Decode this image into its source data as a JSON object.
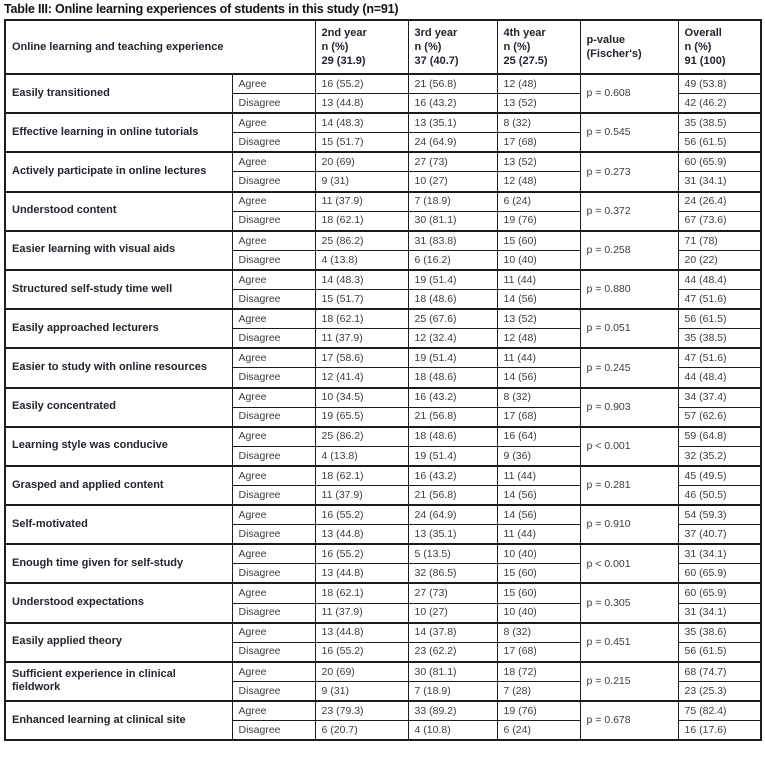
{
  "page": {
    "title": "Table III: Online learning experiences of students in this study (n=91)"
  },
  "colors": {
    "background": "#ffffff",
    "border": "#1b1b1e",
    "heading_text": "#24232e",
    "body_text": "#3c3b42"
  },
  "table": {
    "header": {
      "experience": "Online learning and teaching experience",
      "year2": [
        "2nd year",
        "n (%)",
        "29 (31.9)"
      ],
      "year3": [
        "3rd year",
        "n (%)",
        "37 (40.7)"
      ],
      "year4": [
        "4th year",
        "n (%)",
        "25 (27.5)"
      ],
      "pvalue": [
        "p-value",
        "(Fischer's)"
      ],
      "overall": [
        "Overall",
        "n (%)",
        "91 (100)"
      ]
    },
    "response_labels": [
      "Agree",
      "Disagree"
    ],
    "rows": [
      {
        "label": "Easily transitioned",
        "agree": [
          "16 (55.2)",
          "21 (56.8)",
          "12 (48)",
          "49 (53.8)"
        ],
        "disagree": [
          "13 (44.8)",
          "16 (43.2)",
          "13 (52)",
          "42 (46.2)"
        ],
        "p": "p = 0.608"
      },
      {
        "label": "Effective learning in online tutorials",
        "agree": [
          "14 (48.3)",
          "13 (35.1)",
          "8 (32)",
          "35 (38.5)"
        ],
        "disagree": [
          "15 (51.7)",
          "24 (64.9)",
          "17 (68)",
          "56 (61.5)"
        ],
        "p": "p = 0.545"
      },
      {
        "label": "Actively participate in online lectures",
        "agree": [
          "20 (69)",
          "27 (73)",
          "13 (52)",
          "60 (65.9)"
        ],
        "disagree": [
          "9 (31)",
          "10 (27)",
          "12 (48)",
          "31 (34.1)"
        ],
        "p": "p = 0.273"
      },
      {
        "label": "Understood content",
        "agree": [
          "11 (37.9)",
          "7 (18.9)",
          "6 (24)",
          "24 (26.4)"
        ],
        "disagree": [
          "18 (62.1)",
          "30 (81.1)",
          "19 (76)",
          "67 (73.6)"
        ],
        "p": "p = 0.372"
      },
      {
        "label": "Easier learning with visual aids",
        "agree": [
          "25 (86.2)",
          "31 (83.8)",
          "15 (60)",
          "71 (78)"
        ],
        "disagree": [
          "4 (13.8)",
          "6 (16.2)",
          "10 (40)",
          "20 (22)"
        ],
        "p": "p = 0.258"
      },
      {
        "label": "Structured self-study time well",
        "agree": [
          "14 (48.3)",
          "19 (51.4)",
          "11 (44)",
          "44 (48.4)"
        ],
        "disagree": [
          "15 (51.7)",
          "18 (48.6)",
          "14 (56)",
          "47 (51.6)"
        ],
        "p": "p = 0.880"
      },
      {
        "label": "Easily approached lecturers",
        "agree": [
          "18 (62.1)",
          "25 (67.6)",
          "13 (52)",
          "56 (61.5)"
        ],
        "disagree": [
          "11 (37.9)",
          "12 (32.4)",
          "12 (48)",
          "35 (38.5)"
        ],
        "p": "p = 0.051"
      },
      {
        "label": "Easier to study with online resources",
        "agree": [
          "17 (58.6)",
          "19 (51.4)",
          "11 (44)",
          "47 (51.6)"
        ],
        "disagree": [
          "12 (41.4)",
          "18 (48.6)",
          "14 (56)",
          "44 (48.4)"
        ],
        "p": "p = 0.245"
      },
      {
        "label": "Easily concentrated",
        "agree": [
          "10 (34.5)",
          "16 (43.2)",
          "8 (32)",
          "34 (37.4)"
        ],
        "disagree": [
          "19 (65.5)",
          "21 (56.8)",
          "17 (68)",
          "57 (62.6)"
        ],
        "p": "p = 0.903"
      },
      {
        "label": "Learning style was conducive",
        "agree": [
          "25 (86.2)",
          "18 (48.6)",
          "16 (64)",
          "59 (64.8)"
        ],
        "disagree": [
          "4 (13.8)",
          "19 (51.4)",
          "9 (36)",
          "32 (35.2)"
        ],
        "p": "p < 0.001"
      },
      {
        "label": "Grasped and applied content",
        "agree": [
          "18 (62.1)",
          "16 (43.2)",
          "11 (44)",
          "45 (49.5)"
        ],
        "disagree": [
          "11 (37.9)",
          "21 (56.8)",
          "14 (56)",
          "46 (50.5)"
        ],
        "p": "p = 0.281"
      },
      {
        "label": "Self-motivated",
        "agree": [
          "16 (55.2)",
          "24 (64.9)",
          "14 (56)",
          "54 (59.3)"
        ],
        "disagree": [
          "13 (44.8)",
          "13 (35.1)",
          "11 (44)",
          "37 (40.7)"
        ],
        "p": "p = 0.910"
      },
      {
        "label": "Enough time given for self-study",
        "agree": [
          "16 (55.2)",
          "5 (13.5)",
          "10 (40)",
          "31 (34.1)"
        ],
        "disagree": [
          "13 (44.8)",
          "32 (86.5)",
          "15 (60)",
          "60 (65.9)"
        ],
        "p": "p < 0.001"
      },
      {
        "label": "Understood expectations",
        "agree": [
          "18 (62.1)",
          "27 (73)",
          "15 (60)",
          "60 (65.9)"
        ],
        "disagree": [
          "11 (37.9)",
          "10 (27)",
          "10 (40)",
          "31 (34.1)"
        ],
        "p": "p = 0.305"
      },
      {
        "label": "Easily applied theory",
        "agree": [
          "13 (44.8)",
          "14 (37.8)",
          "8 (32)",
          "35 (38.6)"
        ],
        "disagree": [
          "16 (55.2)",
          "23 (62.2)",
          "17 (68)",
          "56 (61.5)"
        ],
        "p": "p = 0.451"
      },
      {
        "label": "Sufficient experience in clinical fieldwork",
        "agree": [
          "20 (69)",
          "30 (81.1)",
          "18 (72)",
          "68 (74.7)"
        ],
        "disagree": [
          "9 (31)",
          "7 (18.9)",
          "7 (28)",
          "23 (25.3)"
        ],
        "p": "p = 0.215"
      },
      {
        "label": "Enhanced learning at clinical site",
        "agree": [
          "23 (79.3)",
          "33 (89.2)",
          "19 (76)",
          "75 (82.4)"
        ],
        "disagree": [
          "6 (20.7)",
          "4 (10.8)",
          "6 (24)",
          "16 (17.6)"
        ],
        "p": "p = 0.678"
      }
    ]
  }
}
